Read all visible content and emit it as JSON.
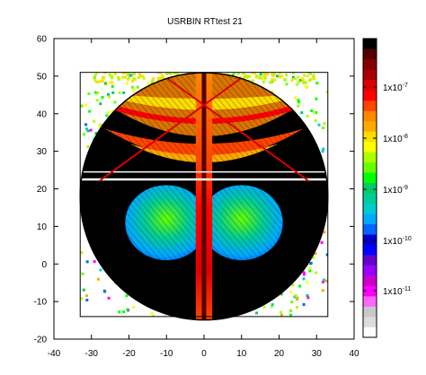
{
  "chart_data": {
    "type": "heatmap",
    "title": "USRBIN RTtest 21",
    "xlabel": "",
    "ylabel": "",
    "xlim": [
      -40,
      40
    ],
    "ylim": [
      -20,
      60
    ],
    "x_ticks": [
      "-40",
      "-30",
      "-20",
      "-10",
      "0",
      "10",
      "20",
      "30",
      "40"
    ],
    "y_ticks": [
      "-20",
      "-10",
      "0",
      "10",
      "20",
      "30",
      "40",
      "50",
      "60"
    ],
    "colorbar": {
      "scale": "log",
      "labels": [
        "1x10-11",
        "1x10-10",
        "1x10-9",
        "1x10-8",
        "1x10-7"
      ],
      "colors": [
        "#ffffff",
        "#dcdcdc",
        "#c8c8c8",
        "#ff66ff",
        "#ff00ff",
        "#cc00cc",
        "#9900ff",
        "#6600cc",
        "#0000ff",
        "#0000cc",
        "#0066ff",
        "#00aaff",
        "#00cccc",
        "#00cc99",
        "#00cc66",
        "#00ff00",
        "#66ff00",
        "#aaff00",
        "#ffff00",
        "#ffdd00",
        "#ffaa00",
        "#ff8800",
        "#ff4400",
        "#ff0000",
        "#dd0000",
        "#aa0000",
        "#880000",
        "#550000",
        "#000000"
      ]
    },
    "geometry": {
      "circle_center": [
        0,
        18
      ],
      "circle_radius": 33,
      "square_x": [
        -33,
        33
      ],
      "square_y": [
        -14,
        51
      ]
    }
  }
}
